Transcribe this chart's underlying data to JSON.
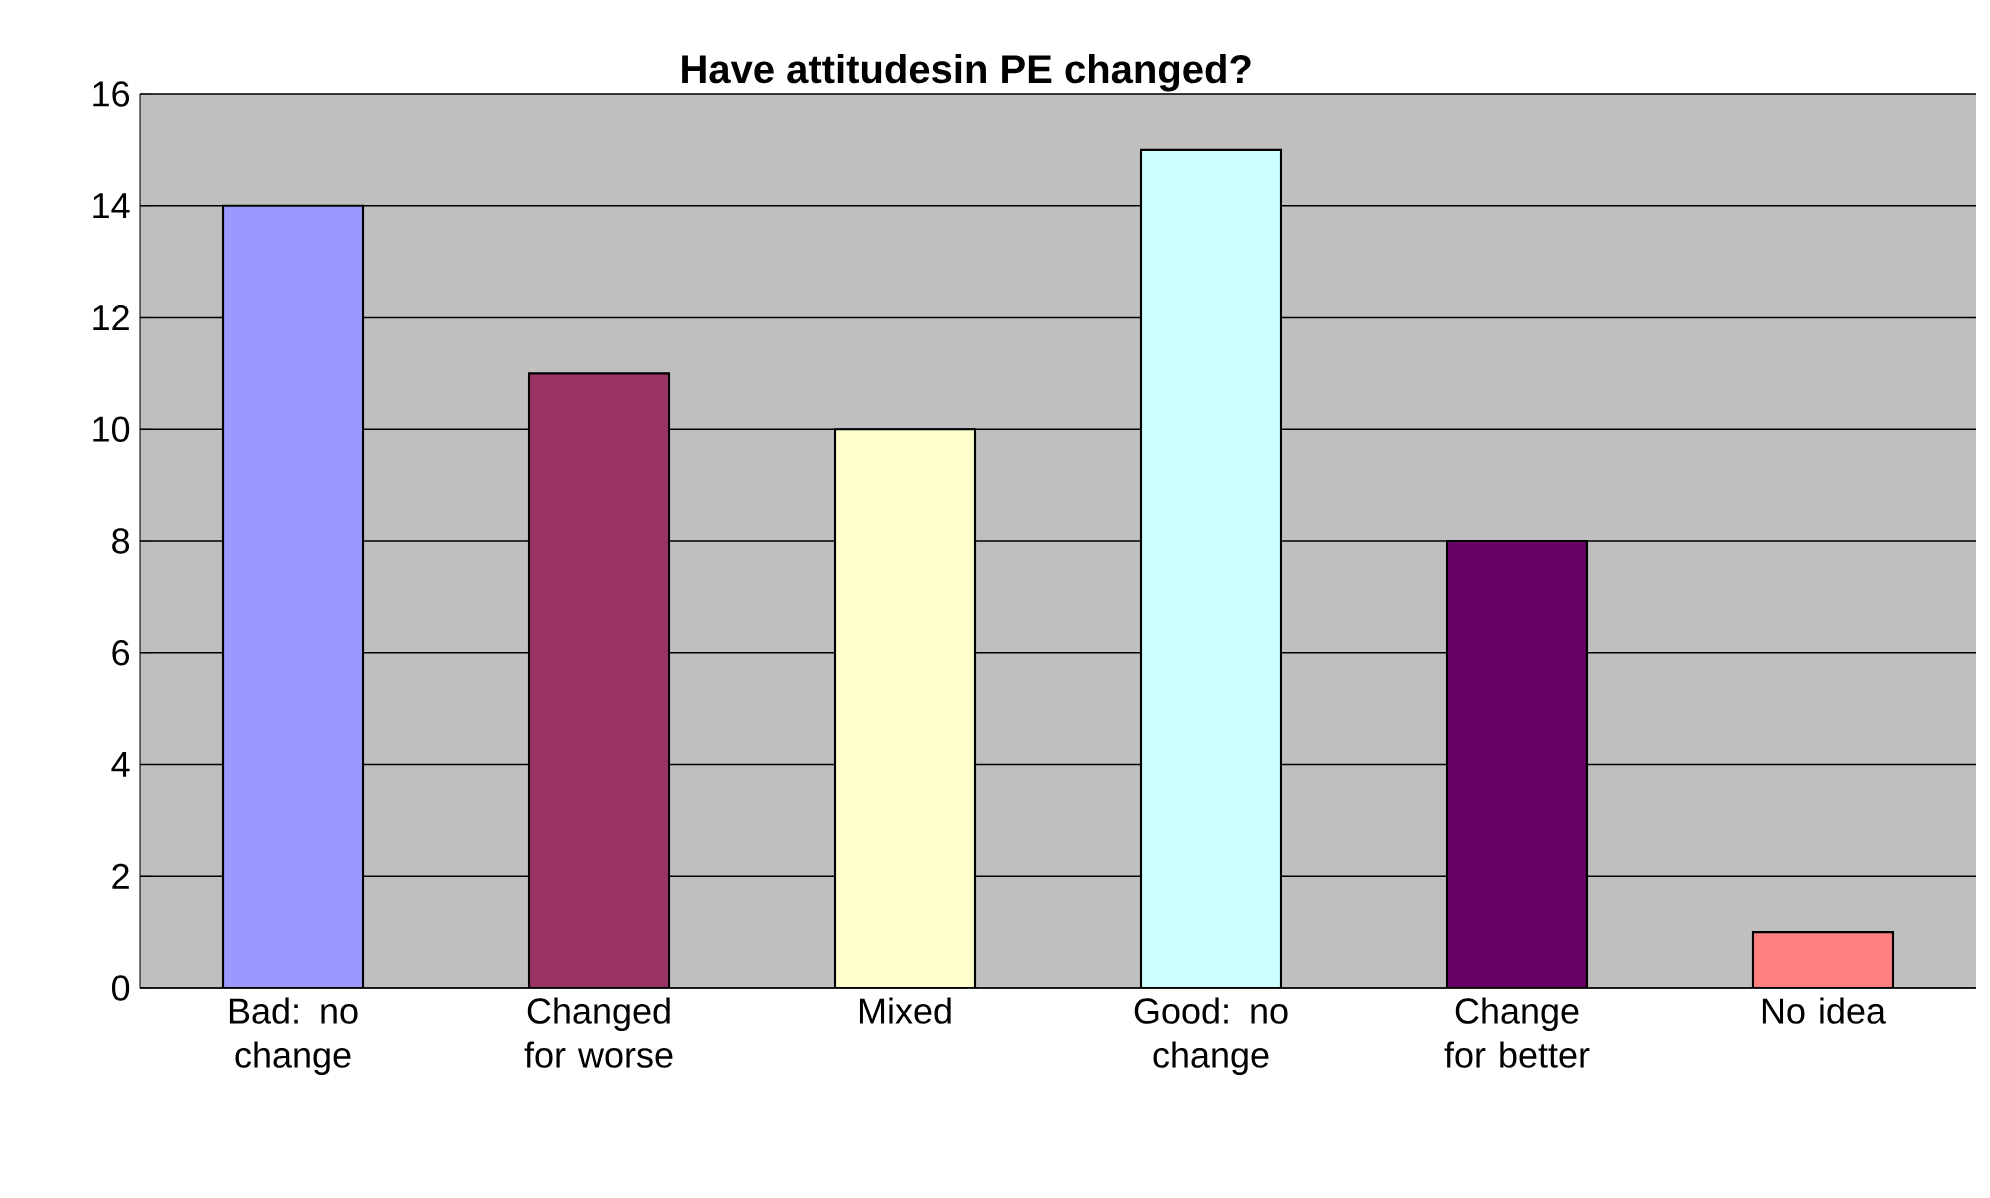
{
  "chart_data": {
    "type": "bar",
    "title": "Have attitudesin PE changed?",
    "categories": [
      "Bad: no change",
      "Changed for worse",
      "Mixed",
      "Good: no change",
      "Change for better",
      "No idea"
    ],
    "values": [
      14,
      11,
      10,
      15,
      8,
      1
    ],
    "colors": [
      "#9999ff",
      "#993366",
      "#ffffcc",
      "#ccffff",
      "#660066",
      "#ff8080"
    ],
    "ylim": [
      0,
      16
    ],
    "yticks": [
      0,
      2,
      4,
      6,
      8,
      10,
      12,
      14,
      16
    ],
    "grid": "y"
  }
}
